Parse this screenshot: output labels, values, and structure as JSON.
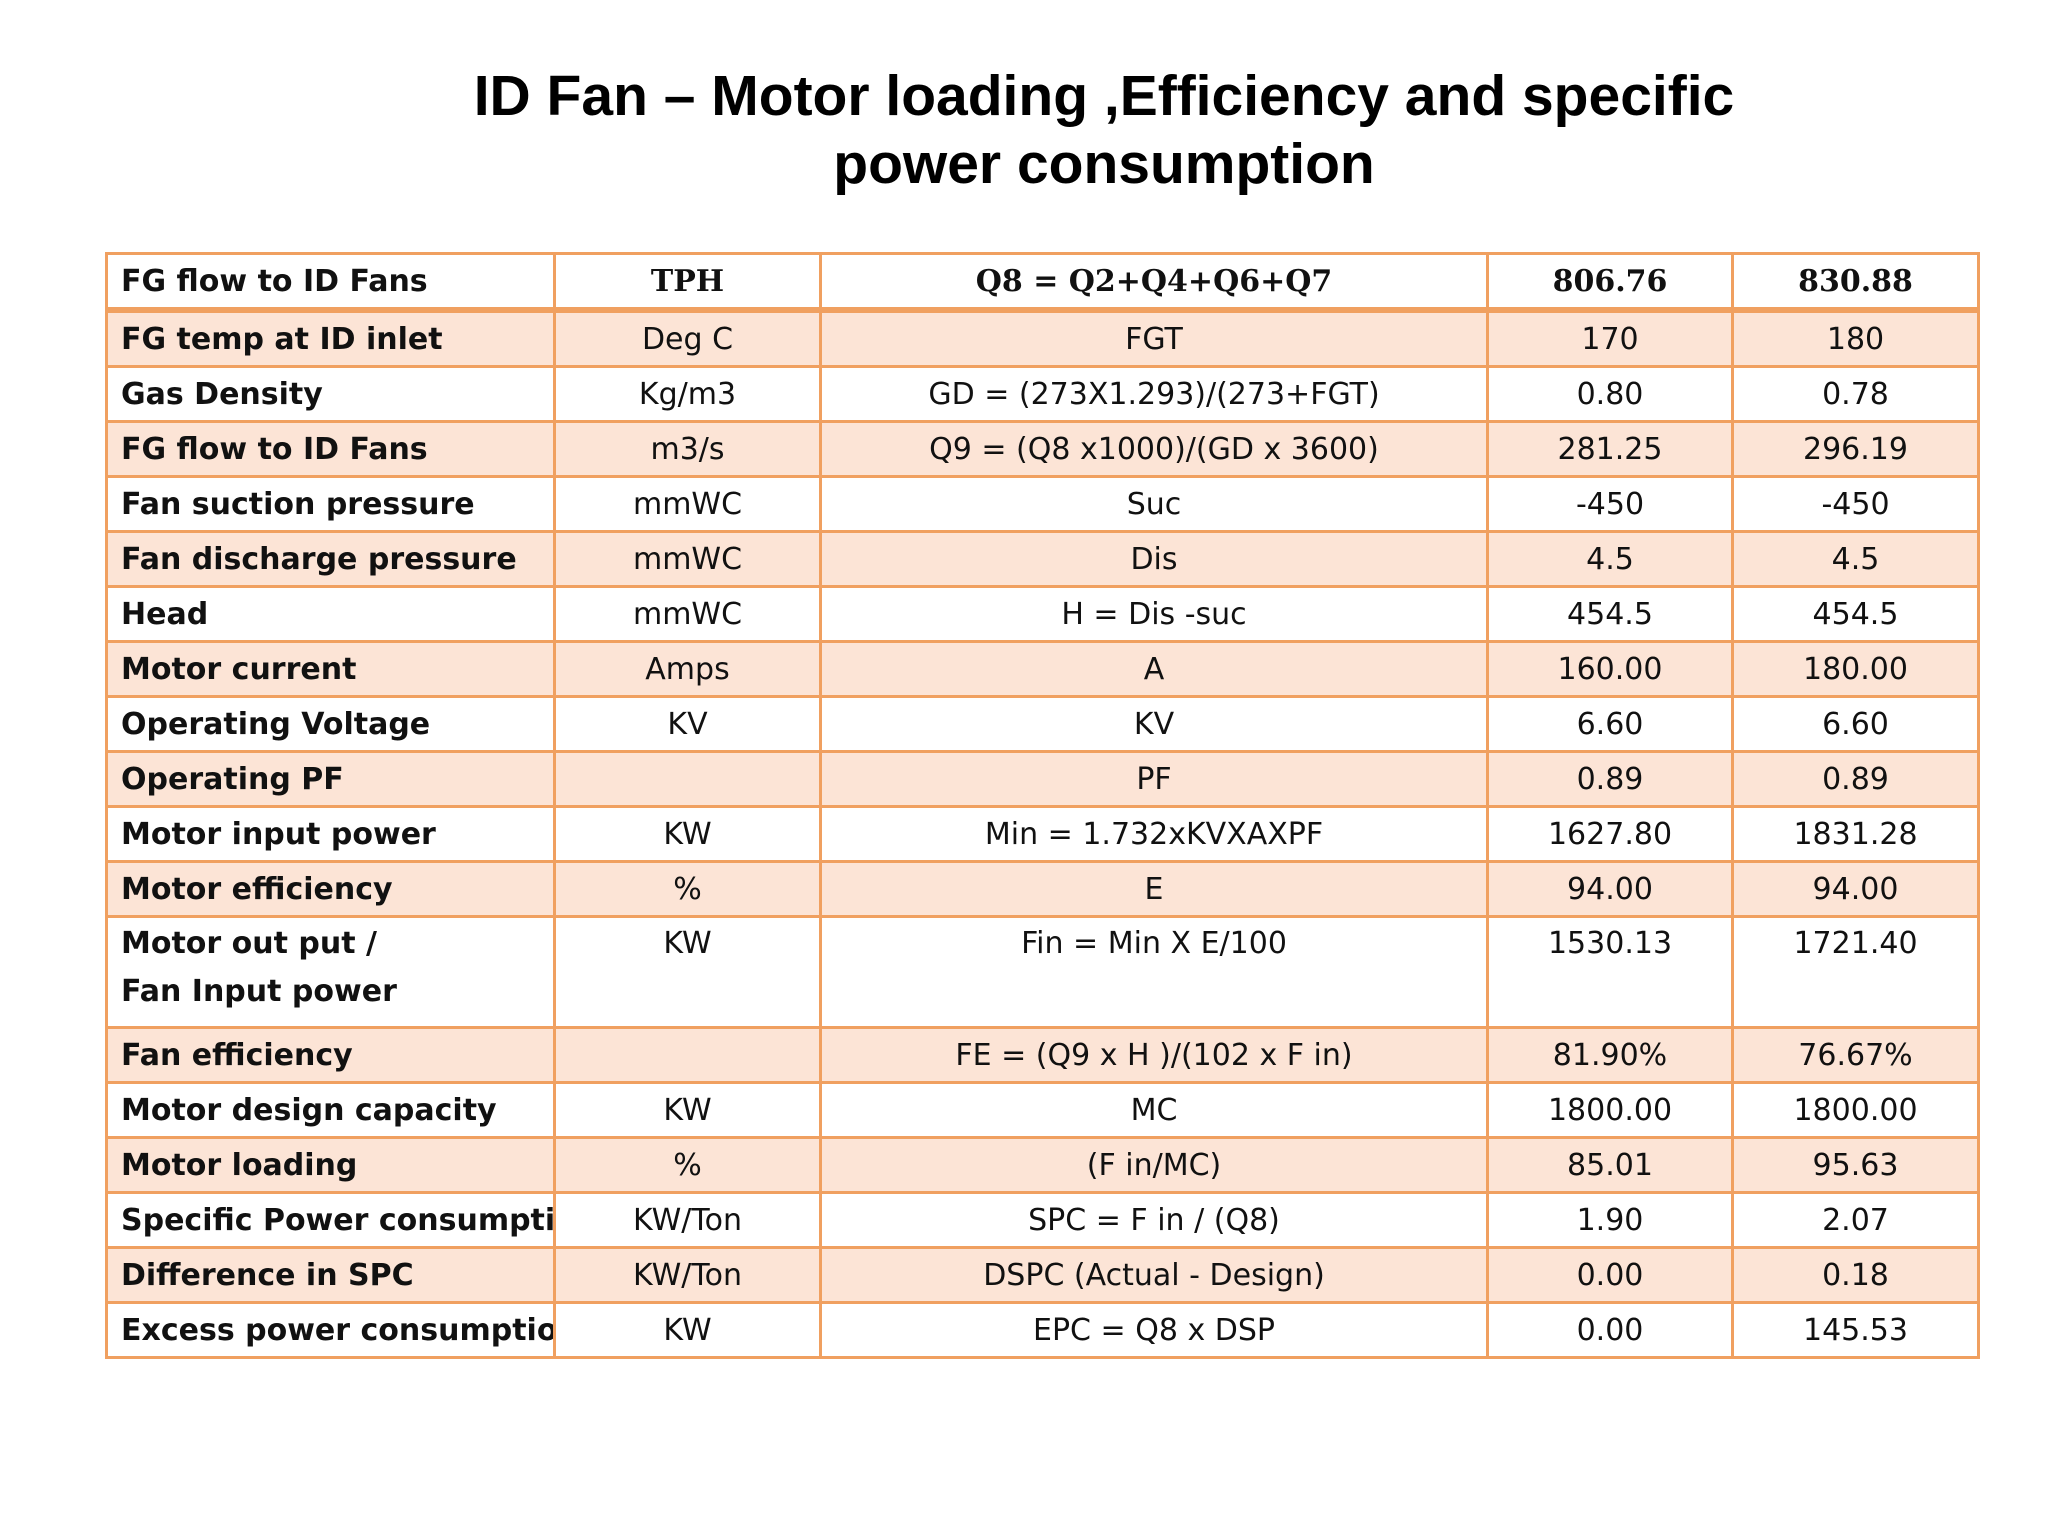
{
  "title": {
    "line1": "ID Fan – Motor loading ,Efficiency and specific",
    "line2": "power consumption"
  },
  "table": {
    "header": {
      "parameter": "FG flow to ID Fans",
      "unit": "TPH",
      "formula": "Q8 = Q2+Q4+Q6+Q7",
      "value1": "806.76",
      "value2": "830.88"
    },
    "rows": [
      {
        "parameter": "FG temp at ID inlet",
        "unit": "Deg C",
        "formula": "FGT",
        "value1": "170",
        "value2": "180"
      },
      {
        "parameter": "Gas  Density",
        "unit": "Kg/m3",
        "formula": "GD = (273X1.293)/(273+FGT)",
        "value1": "0.80",
        "value2": "0.78"
      },
      {
        "parameter": "FG flow to ID Fans",
        "unit": "m3/s",
        "formula": "Q9  = (Q8 x1000)/(GD x 3600)",
        "value1": "281.25",
        "value2": "296.19"
      },
      {
        "parameter": "Fan suction pressure",
        "unit": "mmWC",
        "formula": "Suc",
        "value1": "-450",
        "value2": "-450"
      },
      {
        "parameter": "Fan discharge pressure",
        "unit": "mmWC",
        "formula": "Dis",
        "value1": "4.5",
        "value2": "4.5"
      },
      {
        "parameter": "Head",
        "unit": "mmWC",
        "formula": "H = Dis -suc",
        "value1": "454.5",
        "value2": "454.5"
      },
      {
        "parameter": "Motor  current",
        "unit": "Amps",
        "formula": "A",
        "value1": "160.00",
        "value2": "180.00"
      },
      {
        "parameter": "Operating Voltage",
        "unit": "KV",
        "formula": "KV",
        "value1": "6.60",
        "value2": "6.60"
      },
      {
        "parameter": "Operating PF",
        "unit": "",
        "formula": "PF",
        "value1": "0.89",
        "value2": "0.89"
      },
      {
        "parameter": "Motor input  power",
        "unit": "KW",
        "formula": "Min = 1.732xKVXAXPF",
        "value1": "1627.80",
        "value2": "1831.28"
      },
      {
        "parameter": "Motor efficiency",
        "unit": "%",
        "formula": "E",
        "value1": "94.00",
        "value2": "94.00"
      },
      {
        "parameter_line1": "Motor out put /",
        "parameter_line2": "Fan Input power",
        "unit": "KW",
        "formula": "Fin = Min X E/100",
        "value1": "1530.13",
        "value2": "1721.40"
      },
      {
        "parameter": "Fan efficiency",
        "unit": "",
        "formula": "FE = (Q9 x H )/(102 x  F in)",
        "value1": "81.90%",
        "value2": "76.67%"
      },
      {
        "parameter": "Motor design capacity",
        "unit": "KW",
        "formula": "MC",
        "value1": "1800.00",
        "value2": "1800.00"
      },
      {
        "parameter": "Motor loading",
        "unit": "%",
        "formula": "(F in/MC)",
        "value1": "85.01",
        "value2": "95.63"
      },
      {
        "parameter": "Specific Power consumption",
        "unit": "KW/Ton",
        "formula": "SPC = F in / (Q8)",
        "value1": "1.90",
        "value2": "2.07"
      },
      {
        "parameter": "Difference in SPC",
        "unit": "KW/Ton",
        "formula": "DSPC (Actual - Design)",
        "value1": "0.00",
        "value2": "0.18"
      },
      {
        "parameter": "Excess power consumption",
        "unit": "KW",
        "formula": "EPC = Q8 x DSP",
        "value1": "0.00",
        "value2": "145.53"
      }
    ]
  }
}
